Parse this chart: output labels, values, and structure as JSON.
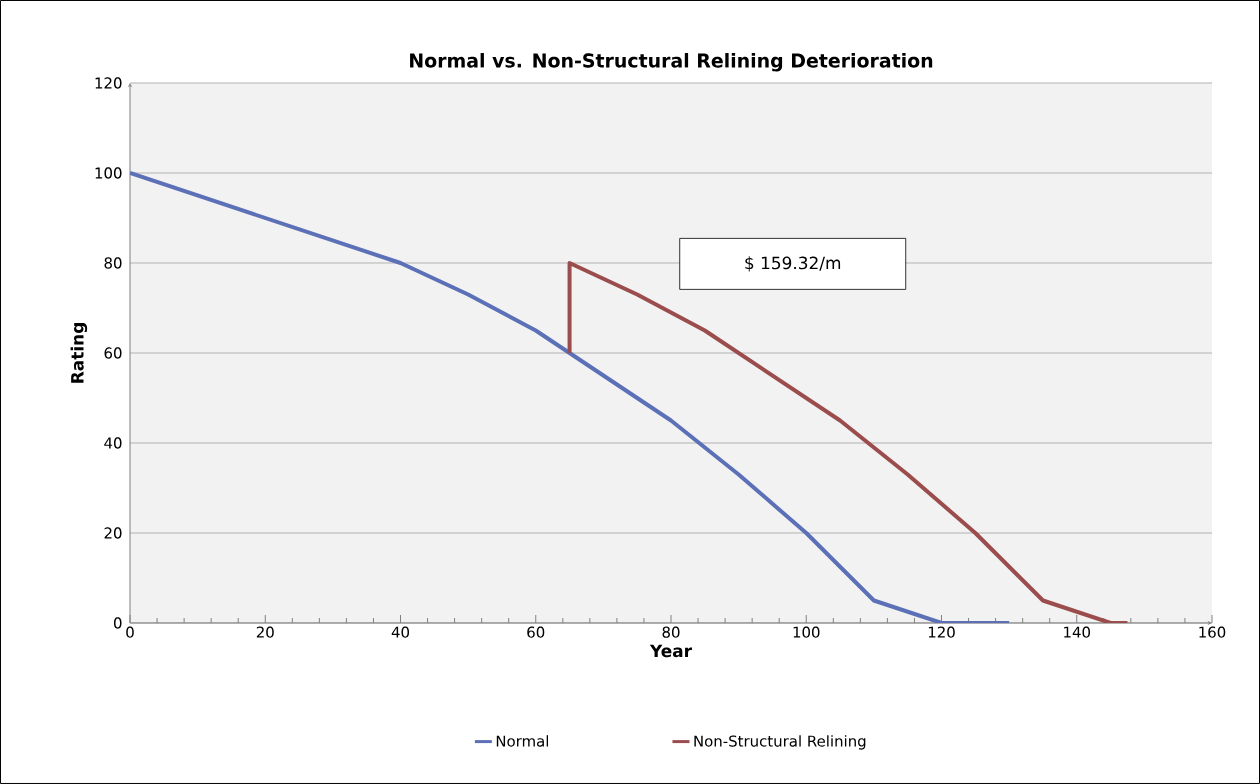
{
  "chart_data": {
    "type": "line",
    "title": "Normal vs. Non-Structural Relining Deterioration",
    "xlabel": "Year",
    "ylabel": "Rating",
    "series": [
      {
        "name": "Normal",
        "color": "#5b70b7",
        "x": [
          0,
          40,
          50,
          60,
          80,
          90,
          100,
          110,
          120,
          130
        ],
        "values": [
          100,
          80,
          73,
          65,
          45,
          33,
          20,
          5,
          0,
          0
        ]
      },
      {
        "name": "Non-Structural Relining",
        "color": "#9b4c4c",
        "x": [
          65,
          65,
          75,
          85,
          105,
          115,
          125,
          135,
          145,
          147.5
        ],
        "values": [
          60,
          80,
          73,
          65,
          45,
          33,
          20,
          5,
          0,
          0
        ]
      }
    ],
    "annotations": [
      "$ 159.32/m"
    ],
    "xlim": [
      0,
      160
    ],
    "xticks": [
      0,
      20,
      40,
      60,
      80,
      100,
      120,
      140,
      160
    ],
    "ylim": [
      0,
      120
    ],
    "yticks": [
      0,
      20,
      40,
      60,
      80,
      100,
      120
    ],
    "grid": "y",
    "legend": "bottom",
    "marker": "none",
    "line_style": "solid"
  }
}
